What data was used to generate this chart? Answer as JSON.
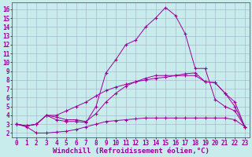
{
  "xlabel": "Windchill (Refroidissement éolien,°C)",
  "bg_color": "#c8ecec",
  "line_color": "#990099",
  "grid_color": "#aaaacc",
  "xlim": [
    -0.5,
    23.5
  ],
  "ylim": [
    1.5,
    16.8
  ],
  "xticks": [
    0,
    1,
    2,
    3,
    4,
    5,
    6,
    7,
    8,
    9,
    10,
    11,
    12,
    13,
    14,
    15,
    16,
    17,
    18,
    19,
    20,
    21,
    22,
    23
  ],
  "yticks": [
    2,
    3,
    4,
    5,
    6,
    7,
    8,
    9,
    10,
    11,
    12,
    13,
    14,
    15,
    16
  ],
  "line1_x": [
    0,
    1,
    2,
    3,
    4,
    5,
    6,
    7,
    8,
    9,
    10,
    11,
    12,
    13,
    14,
    15,
    16,
    17,
    18,
    19,
    20,
    21,
    22,
    23
  ],
  "line1_y": [
    3.0,
    2.8,
    3.0,
    4.0,
    3.5,
    3.3,
    3.3,
    3.2,
    5.0,
    8.8,
    10.3,
    12.0,
    12.5,
    14.0,
    15.0,
    16.2,
    15.3,
    13.2,
    9.3,
    9.3,
    5.8,
    5.0,
    4.5,
    2.7
  ],
  "line2_x": [
    0,
    1,
    2,
    3,
    4,
    5,
    6,
    7,
    8,
    9,
    10,
    11,
    12,
    13,
    14,
    15,
    16,
    17,
    18,
    19,
    20,
    21,
    22,
    23
  ],
  "line2_y": [
    3.0,
    2.8,
    3.0,
    4.0,
    4.0,
    4.5,
    5.0,
    5.5,
    6.2,
    6.8,
    7.2,
    7.5,
    7.8,
    8.0,
    8.2,
    8.3,
    8.5,
    8.7,
    8.8,
    7.8,
    7.7,
    6.5,
    5.5,
    2.7
  ],
  "line3_x": [
    0,
    1,
    2,
    3,
    4,
    5,
    6,
    7,
    8,
    9,
    10,
    11,
    12,
    13,
    14,
    15,
    16,
    17,
    18,
    19,
    20,
    21,
    22,
    23
  ],
  "line3_y": [
    3.0,
    2.7,
    2.0,
    2.0,
    2.1,
    2.2,
    2.4,
    2.7,
    3.0,
    3.3,
    3.4,
    3.5,
    3.6,
    3.7,
    3.7,
    3.7,
    3.7,
    3.7,
    3.7,
    3.7,
    3.7,
    3.7,
    3.5,
    2.7
  ],
  "line4_x": [
    0,
    1,
    2,
    3,
    4,
    5,
    6,
    7,
    8,
    9,
    10,
    11,
    12,
    13,
    14,
    15,
    16,
    17,
    18,
    19,
    20,
    21,
    22,
    23
  ],
  "line4_y": [
    3.0,
    2.8,
    3.0,
    4.0,
    3.8,
    3.5,
    3.5,
    3.3,
    4.2,
    5.5,
    6.5,
    7.3,
    7.8,
    8.2,
    8.5,
    8.5,
    8.5,
    8.5,
    8.5,
    7.8,
    7.7,
    6.5,
    5.0,
    2.7
  ],
  "tick_fontsize": 5.5,
  "xlabel_fontsize": 6.5
}
